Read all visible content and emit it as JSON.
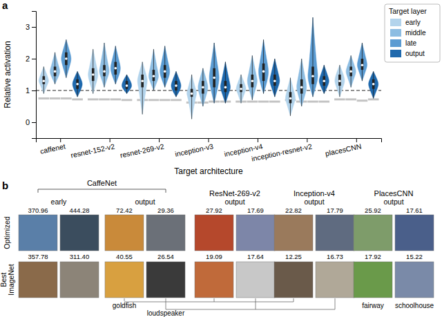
{
  "chart_data": {
    "type": "violin",
    "label": "a",
    "y_label": "Relative activation",
    "x_label": "Target architecture",
    "categories": [
      "caffenet",
      "resnet-152-v2",
      "resnet-269-v2",
      "inception-v3",
      "inception-v4",
      "inception-resnet-v2",
      "placesCNN"
    ],
    "ylim": [
      -0.5,
      3.5
    ],
    "yticks": [
      0,
      1,
      2,
      3
    ],
    "legend": "top right",
    "legend_title": "Target layer",
    "annotations": [
      {
        "y": 1,
        "line_style": "dashed"
      }
    ],
    "series": [
      {
        "name": "early",
        "color": "#b3d4ec",
        "values": [
          1.3,
          1.5,
          1.3,
          0.9,
          1.05,
          0.75,
          1.3
        ],
        "q1": [
          1.2,
          1.3,
          1.1,
          0.8,
          0.95,
          0.6,
          1.15
        ],
        "q3": [
          1.45,
          1.7,
          1.5,
          1.05,
          1.2,
          0.95,
          1.5
        ],
        "min": [
          0.9,
          0.9,
          0.25,
          0.1,
          0.6,
          0.2,
          0.8
        ],
        "max": [
          1.75,
          2.3,
          1.9,
          1.5,
          1.5,
          1.4,
          1.8
        ],
        "control": [
          0.75,
          0.72,
          0.7,
          0.62,
          0.65,
          0.7,
          0.72
        ]
      },
      {
        "name": "middle",
        "color": "#8dbde2",
        "values": [
          1.6,
          1.6,
          1.45,
          1.1,
          1.3,
          1.1,
          1.6
        ],
        "q1": [
          1.45,
          1.45,
          1.3,
          0.9,
          1.1,
          0.9,
          1.45
        ],
        "q3": [
          1.75,
          1.8,
          1.65,
          1.3,
          1.5,
          1.35,
          1.75
        ],
        "min": [
          1.2,
          1.1,
          1.0,
          0.5,
          0.7,
          0.5,
          1.1
        ],
        "max": [
          2.2,
          2.5,
          2.3,
          1.7,
          2.1,
          2.0,
          2.1
        ],
        "control": [
          0.75,
          0.72,
          0.7,
          0.62,
          0.65,
          0.65,
          0.72
        ]
      },
      {
        "name": "late",
        "color": "#5a9bd2",
        "values": [
          2.0,
          1.7,
          1.6,
          1.4,
          1.6,
          1.45,
          1.8
        ],
        "q1": [
          1.8,
          1.5,
          1.4,
          1.1,
          1.3,
          1.2,
          1.65
        ],
        "q3": [
          2.2,
          1.9,
          1.8,
          1.7,
          1.85,
          1.75,
          2.0
        ],
        "min": [
          1.4,
          1.2,
          1.1,
          0.6,
          0.9,
          0.8,
          1.3
        ],
        "max": [
          2.6,
          2.4,
          2.4,
          2.5,
          2.6,
          3.3,
          2.5
        ],
        "control": [
          0.75,
          0.72,
          0.7,
          0.65,
          0.65,
          0.65,
          0.68
        ]
      },
      {
        "name": "output",
        "color": "#1f69ad",
        "values": [
          1.2,
          1.15,
          1.15,
          1.1,
          1.3,
          1.3,
          1.2
        ],
        "q1": [
          1.05,
          1.05,
          1.0,
          0.95,
          1.15,
          1.15,
          1.05
        ],
        "q3": [
          1.35,
          1.3,
          1.3,
          1.3,
          1.5,
          1.45,
          1.35
        ],
        "min": [
          0.8,
          0.9,
          0.8,
          0.6,
          0.8,
          0.9,
          0.75
        ],
        "max": [
          1.6,
          1.5,
          1.6,
          1.9,
          2.0,
          1.8,
          1.6
        ],
        "control": [
          0.72,
          0.7,
          0.7,
          0.65,
          0.65,
          0.65,
          0.72
        ]
      }
    ]
  },
  "panel_b": {
    "label": "b",
    "row_labels": [
      [
        "Optimized"
      ],
      [
        "Best",
        "ImageNet"
      ]
    ],
    "groups": [
      {
        "title": "CaffeNet",
        "layers": [
          {
            "name": "early",
            "optimized": [
              "370.96",
              "444.28"
            ],
            "best": [
              "357.78",
              "311.40"
            ]
          },
          {
            "name": "output",
            "optimized": [
              "72.42",
              "29.36"
            ],
            "best": [
              "40.55",
              "26.54"
            ],
            "classes": [
              "goldfish",
              "loudspeaker"
            ]
          }
        ]
      },
      {
        "title": "ResNet-269-v2",
        "layers": [
          {
            "name": "output",
            "optimized": [
              "27.92",
              "17.69"
            ],
            "best": [
              "19.09",
              "17.64"
            ]
          }
        ]
      },
      {
        "title": "Inception-v4",
        "layers": [
          {
            "name": "output",
            "optimized": [
              "22.82",
              "17.79"
            ],
            "best": [
              "12.25",
              "16.73"
            ]
          }
        ]
      },
      {
        "title": "PlacesCNN",
        "layers": [
          {
            "name": "output",
            "optimized": [
              "25.92",
              "17.61"
            ],
            "best": [
              "17.92",
              "15.22"
            ],
            "classes": [
              "fairway",
              "schoolhouse"
            ]
          }
        ]
      }
    ]
  }
}
